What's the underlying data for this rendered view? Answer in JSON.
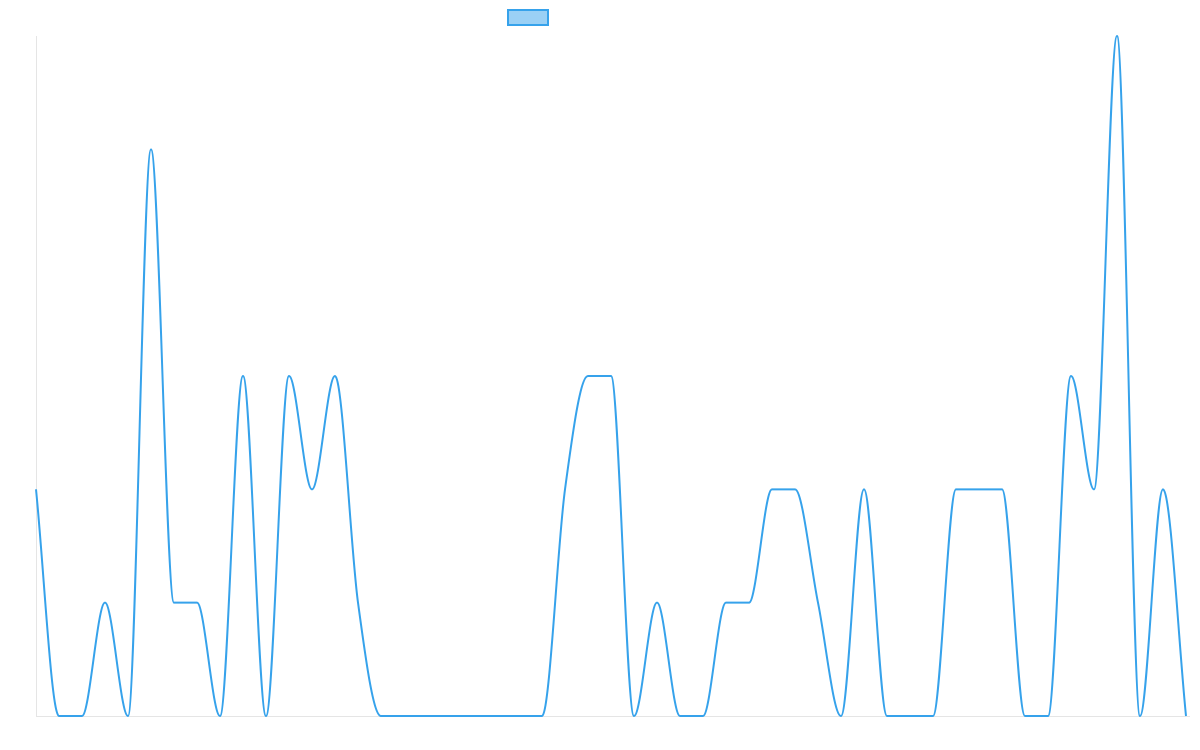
{
  "chart_data": {
    "type": "line",
    "title": "",
    "xlabel": "",
    "ylabel": "",
    "ylim": [
      0,
      6
    ],
    "grid": false,
    "legend": "top-center",
    "series": [
      {
        "name": "",
        "color": "#36a2eb",
        "fill_color": "rgba(54,162,235,0.5)",
        "values": [
          2,
          0,
          0,
          1,
          0,
          5,
          1,
          1,
          0,
          3,
          0,
          3,
          2,
          3,
          1,
          0,
          0,
          0,
          0,
          0,
          0,
          0,
          0,
          2,
          3,
          3,
          0,
          1,
          0,
          0,
          1,
          1,
          2,
          2,
          1,
          0,
          2,
          0,
          0,
          0,
          2,
          2,
          2,
          0,
          0,
          3,
          2,
          6,
          0,
          2,
          0
        ]
      }
    ]
  }
}
